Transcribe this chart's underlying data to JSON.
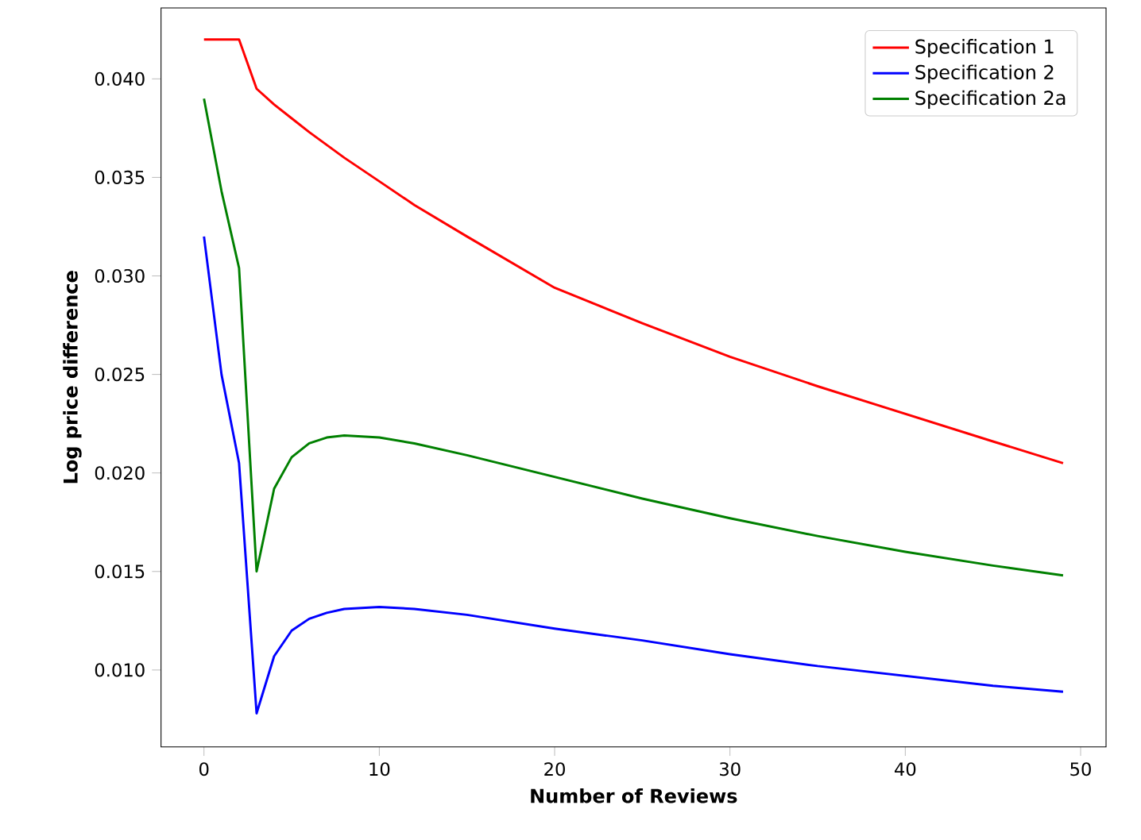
{
  "chart_data": {
    "type": "line",
    "xlabel": "Number of Reviews",
    "ylabel": "Log price difference",
    "xlim": [
      -2.45,
      51.45
    ],
    "ylim": [
      0.0061,
      0.0436
    ],
    "xticks": [
      0,
      10,
      20,
      30,
      40,
      50
    ],
    "yticks": [
      {
        "value": 0.01,
        "label": "0.010"
      },
      {
        "value": 0.015,
        "label": "0.015"
      },
      {
        "value": 0.02,
        "label": "0.020"
      },
      {
        "value": 0.025,
        "label": "0.025"
      },
      {
        "value": 0.03,
        "label": "0.030"
      },
      {
        "value": 0.035,
        "label": "0.035"
      },
      {
        "value": 0.04,
        "label": "0.040"
      }
    ],
    "legend": "top right",
    "grid": false,
    "marker": "none",
    "line_style": "solid",
    "series": [
      {
        "name": "Specification 1",
        "color": "#ff0000",
        "x": [
          0,
          1,
          2,
          3,
          4,
          5,
          6,
          8,
          10,
          12,
          15,
          20,
          25,
          30,
          35,
          40,
          45,
          49
        ],
        "values": [
          0.042,
          0.042,
          0.042,
          0.0395,
          0.0387,
          0.038,
          0.0373,
          0.036,
          0.0348,
          0.0336,
          0.032,
          0.0294,
          0.0276,
          0.0259,
          0.0244,
          0.023,
          0.0216,
          0.0205
        ]
      },
      {
        "name": "Specification 2",
        "color": "#0000ff",
        "x": [
          0,
          1,
          2,
          3,
          4,
          5,
          6,
          7,
          8,
          10,
          12,
          15,
          20,
          25,
          30,
          35,
          40,
          45,
          49
        ],
        "values": [
          0.032,
          0.025,
          0.0205,
          0.0078,
          0.0107,
          0.012,
          0.0126,
          0.0129,
          0.0131,
          0.0132,
          0.0131,
          0.0128,
          0.0121,
          0.0115,
          0.0108,
          0.0102,
          0.0097,
          0.0092,
          0.0089
        ]
      },
      {
        "name": "Specification 2a",
        "color": "#008000",
        "x": [
          0,
          1,
          2,
          3,
          4,
          5,
          6,
          7,
          8,
          10,
          12,
          15,
          20,
          25,
          30,
          35,
          40,
          45,
          49
        ],
        "values": [
          0.039,
          0.0343,
          0.0304,
          0.015,
          0.0192,
          0.0208,
          0.0215,
          0.0218,
          0.0219,
          0.0218,
          0.0215,
          0.0209,
          0.0198,
          0.0187,
          0.0177,
          0.0168,
          0.016,
          0.0153,
          0.0148
        ]
      }
    ]
  }
}
